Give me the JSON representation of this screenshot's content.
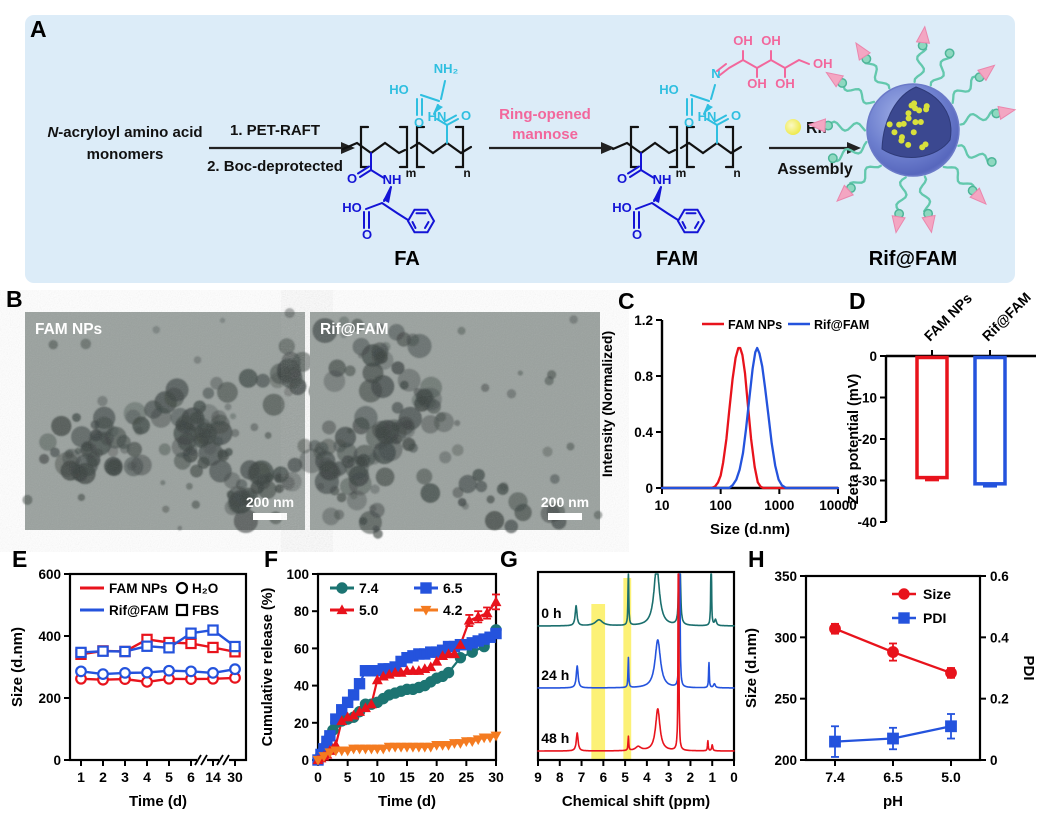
{
  "figure": {
    "panels": {
      "A": "A",
      "B": "B",
      "C": "C",
      "D": "D",
      "E": "E",
      "F": "F",
      "G": "G",
      "H": "H"
    }
  },
  "panelA": {
    "monomers_n": "N",
    "monomers_rest": "-acryloyl amino acid",
    "monomers_line2": "monomers",
    "step1": "1. PET-RAFT",
    "step2": "2. Boc-deprotected",
    "ring1": "Ring-opened",
    "ring2": "mannose",
    "rif": "Rif",
    "assembly": "Assembly",
    "fa": "FA",
    "fam": "FAM",
    "riffam": "Rif@FAM",
    "atoms": {
      "NH2": "NH₂",
      "HO": "HO",
      "OH": "OH",
      "O": "O",
      "HN": "HN",
      "NH": "NH",
      "N": "N",
      "m": "m",
      "n": "n"
    }
  },
  "panelB": {
    "left_label": "FAM NPs",
    "right_label": "Rif@FAM",
    "scale_bar": "200 nm"
  },
  "chart_data": [
    {
      "panel": "C",
      "type": "line",
      "xscale": "log",
      "xlabel": "Size (d.nm)",
      "ylabel": "Intensity (Normalized)",
      "xlim": [
        10,
        10000
      ],
      "ylim": [
        0,
        1.2
      ],
      "xticks": [
        10,
        100,
        1000,
        10000
      ],
      "yticks": [
        0,
        0.4,
        0.8,
        1.2
      ],
      "series": [
        {
          "name": "FAM NPs",
          "color": "#e8131c",
          "x": [
            10,
            70,
            80,
            90,
            100,
            110,
            125,
            140,
            160,
            180,
            200,
            215,
            235,
            260,
            290,
            330,
            380,
            430,
            480,
            530,
            10000
          ],
          "y": [
            0,
            0,
            0.01,
            0.04,
            0.09,
            0.18,
            0.35,
            0.55,
            0.78,
            0.93,
            1.0,
            1.0,
            0.95,
            0.82,
            0.6,
            0.35,
            0.15,
            0.04,
            0.01,
            0,
            0
          ]
        },
        {
          "name": "Rif@FAM",
          "color": "#2453dd",
          "x": [
            10,
            140,
            160,
            185,
            210,
            240,
            270,
            310,
            350,
            390,
            420,
            460,
            510,
            570,
            650,
            740,
            850,
            970,
            1100,
            1300,
            10000
          ],
          "y": [
            0,
            0,
            0.02,
            0.06,
            0.13,
            0.25,
            0.42,
            0.65,
            0.85,
            0.97,
            1.0,
            0.96,
            0.87,
            0.72,
            0.52,
            0.32,
            0.16,
            0.06,
            0.02,
            0,
            0
          ]
        }
      ]
    },
    {
      "panel": "D",
      "type": "bar",
      "ylabel": "Zeta potential (mV)",
      "ylim": [
        0,
        -40
      ],
      "yticks": [
        0,
        -10,
        -20,
        -30,
        -40
      ],
      "categories": [
        "FAM NPs",
        "Rif@FAM"
      ],
      "values": [
        -29.3,
        -30.8
      ],
      "errors": [
        0.6,
        0.6
      ],
      "colors": [
        "#e8131c",
        "#2453dd"
      ]
    },
    {
      "panel": "E",
      "type": "line",
      "xlabel": "Time (d)",
      "ylabel": "Size (d.nm)",
      "categories": [
        1,
        2,
        3,
        4,
        5,
        6,
        14,
        30
      ],
      "ylim": [
        0,
        600
      ],
      "yticks": [
        0,
        200,
        400,
        600
      ],
      "axis_breaks": true,
      "legend": {
        "lines": [
          [
            "FAM NPs",
            "#e8131c"
          ],
          [
            "Rif@FAM",
            "#2453dd"
          ]
        ],
        "markers": [
          [
            "H₂O",
            "circle"
          ],
          [
            "FBS",
            "square"
          ]
        ]
      },
      "series": [
        {
          "name": "FAM NPs H₂O",
          "color": "#e8131c",
          "marker": "circle",
          "values": [
            262,
            259,
            261,
            252,
            262,
            261,
            262,
            265
          ],
          "errors": [
            8,
            6,
            5,
            8,
            6,
            5,
            6,
            7
          ]
        },
        {
          "name": "Rif@FAM H₂O",
          "color": "#2453dd",
          "marker": "circle",
          "values": [
            286,
            277,
            281,
            282,
            288,
            286,
            281,
            293
          ],
          "errors": [
            6,
            5,
            5,
            6,
            5,
            5,
            6,
            6
          ]
        },
        {
          "name": "FAM NPs FBS",
          "color": "#e8131c",
          "marker": "square",
          "values": [
            341,
            352,
            350,
            389,
            379,
            376,
            363,
            349
          ],
          "errors": [
            10,
            8,
            8,
            13,
            11,
            10,
            9,
            12
          ]
        },
        {
          "name": "Rif@FAM FBS",
          "color": "#2453dd",
          "marker": "square",
          "values": [
            347,
            351,
            350,
            367,
            362,
            409,
            419,
            366
          ],
          "errors": [
            9,
            8,
            8,
            12,
            10,
            10,
            9,
            11
          ]
        }
      ]
    },
    {
      "panel": "F",
      "type": "line",
      "xlabel": "Time (d)",
      "ylabel": "Cumulative release (%)",
      "xlim": [
        0,
        30
      ],
      "ylim": [
        0,
        100
      ],
      "xticks": [
        0,
        5,
        10,
        15,
        20,
        25,
        30
      ],
      "yticks": [
        0,
        20,
        40,
        60,
        80,
        100
      ],
      "series": [
        {
          "name": "7.4",
          "color": "#1c7472",
          "marker": "circle",
          "x": [
            0,
            0.5,
            1,
            1.5,
            2,
            2.5,
            3,
            3.5,
            4,
            5,
            6,
            7,
            8,
            9,
            10,
            11,
            12,
            13,
            14,
            15,
            16,
            17,
            18,
            19,
            20,
            21,
            22,
            24,
            26,
            28,
            30
          ],
          "y": [
            0,
            3,
            6,
            9,
            13,
            16,
            20,
            21,
            21,
            22,
            23,
            26,
            30,
            30,
            31,
            33,
            35,
            36,
            37,
            38,
            38,
            39,
            40,
            42,
            44,
            45,
            47,
            55,
            58,
            61,
            70
          ]
        },
        {
          "name": "6.5",
          "color": "#2453dd",
          "marker": "square",
          "x": [
            0,
            0.5,
            1,
            1.5,
            2,
            3,
            4,
            5,
            6,
            7,
            8,
            9,
            10,
            11,
            12,
            13,
            14,
            15,
            16,
            17,
            18,
            19,
            20,
            21,
            22,
            23,
            24,
            25,
            26,
            27,
            28,
            29,
            30
          ],
          "y": [
            0,
            3,
            6,
            10,
            13,
            22,
            27,
            31,
            35,
            41,
            48,
            48,
            48,
            49,
            49,
            50,
            53,
            55,
            56,
            57,
            57,
            58,
            58,
            59,
            61,
            61,
            62,
            62,
            63,
            64,
            65,
            66,
            68
          ]
        },
        {
          "name": "5.0",
          "color": "#e8131c",
          "marker": "triangle-up",
          "x": [
            0,
            0.5,
            1,
            1.5,
            2,
            2.5,
            3,
            4,
            5,
            6,
            7,
            8,
            9,
            10,
            11,
            12,
            13,
            14,
            15,
            16,
            17,
            18,
            19,
            20,
            21,
            22,
            23,
            24,
            25.5,
            27,
            28.5,
            30
          ],
          "y": [
            0,
            1,
            2,
            3,
            5,
            6,
            8,
            21,
            23,
            24,
            26,
            28,
            30,
            43,
            45,
            46,
            47,
            47,
            48,
            48,
            48,
            49,
            50,
            53,
            56,
            57,
            57,
            62,
            75,
            77,
            79,
            85
          ],
          "e": [
            0,
            0,
            0,
            0,
            0,
            0,
            0,
            0,
            0,
            0,
            0,
            0,
            0,
            0,
            0,
            0,
            0,
            0,
            0,
            0,
            0,
            0,
            0,
            0,
            0,
            0,
            0,
            0,
            3,
            3,
            3,
            4
          ]
        },
        {
          "name": "4.2",
          "color": "#f47b20",
          "marker": "triangle-down",
          "x": [
            0,
            1,
            2,
            3,
            4,
            5,
            6,
            7,
            8,
            9,
            10,
            11,
            12,
            13,
            14,
            15,
            16,
            17,
            18,
            19,
            20,
            21,
            22,
            23,
            24,
            25,
            26,
            27,
            28,
            29,
            30
          ],
          "y": [
            0,
            2,
            4,
            5,
            5,
            5,
            6,
            6,
            6,
            6,
            6,
            6,
            7,
            7,
            7,
            7,
            7,
            7,
            7,
            7,
            8,
            8,
            8,
            9,
            9,
            10,
            10,
            11,
            12,
            12,
            13
          ]
        }
      ]
    },
    {
      "panel": "G",
      "type": "nmr",
      "xlabel": "Chemical shift (ppm)",
      "xticks": [
        9,
        8,
        7,
        6,
        5,
        4,
        3,
        2,
        1,
        0
      ],
      "highlight_bands_ppm": [
        [
          6.55,
          5.92
        ],
        [
          5.08,
          4.72
        ]
      ],
      "traces": [
        {
          "name": "0 h",
          "color": "#1b6f6e",
          "peaks": [
            [
              7.25,
              20,
              0.05
            ],
            [
              6.2,
              6,
              0.2
            ],
            [
              4.85,
              58,
              0.02
            ],
            [
              3.55,
              60,
              0.15
            ],
            [
              2.5,
              500,
              0.015
            ],
            [
              1.05,
              120,
              0.015
            ],
            [
              0.85,
              6,
              0.05
            ]
          ]
        },
        {
          "name": "24 h",
          "color": "#2453dd",
          "peaks": [
            [
              7.2,
              22,
              0.05
            ],
            [
              4.85,
              30,
              0.02
            ],
            [
              3.5,
              48,
              0.15
            ],
            [
              2.5,
              500,
              0.012
            ],
            [
              1.15,
              25,
              0.02
            ],
            [
              0.9,
              4,
              0.05
            ]
          ]
        },
        {
          "name": "48 h",
          "color": "#e8131c",
          "peaks": [
            [
              7.2,
              18,
              0.05
            ],
            [
              4.85,
              14,
              0.02
            ],
            [
              4.4,
              4,
              0.15
            ],
            [
              3.5,
              42,
              0.12
            ],
            [
              2.55,
              500,
              0.012
            ],
            [
              1.2,
              10,
              0.02
            ],
            [
              1.0,
              6,
              0.03
            ]
          ]
        }
      ]
    },
    {
      "panel": "H",
      "type": "line",
      "xlabel": "pH",
      "ylabel_left": "Size (d.nm)",
      "ylabel_right": "PDI",
      "categories": [
        "7.4",
        "6.5",
        "5.0"
      ],
      "ylim_left": [
        200,
        350
      ],
      "yticks_left": [
        200,
        250,
        300,
        350
      ],
      "ylim_right": [
        0,
        0.6
      ],
      "yticks_right": [
        0,
        0.2,
        0.4,
        0.6
      ],
      "series": [
        {
          "name": "Size",
          "axis": "left",
          "color": "#e8131c",
          "marker": "circle",
          "values": [
            307,
            288,
            271
          ],
          "errors": [
            4,
            7,
            4
          ]
        },
        {
          "name": "PDI",
          "axis": "right",
          "color": "#2453dd",
          "marker": "square",
          "values": [
            0.06,
            0.07,
            0.11
          ],
          "errors": [
            0.05,
            0.035,
            0.04
          ]
        }
      ]
    }
  ]
}
